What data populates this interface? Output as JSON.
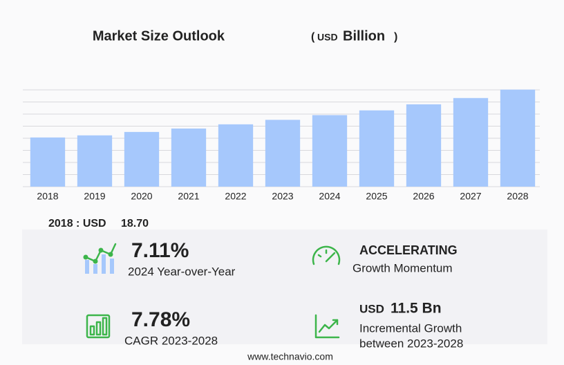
{
  "chart_data": {
    "type": "bar",
    "title": "Market Size Outlook",
    "unit_prefix": "USD",
    "unit": "Billion",
    "categories": [
      "2018",
      "2019",
      "2020",
      "2021",
      "2022",
      "2023",
      "2024",
      "2025",
      "2026",
      "2027",
      "2028"
    ],
    "values": [
      18.7,
      19.5,
      20.8,
      22.1,
      23.7,
      25.4,
      27.2,
      29.0,
      31.3,
      33.7,
      36.9
    ],
    "color": "#a6c8fc",
    "ylim": [
      0,
      36.8
    ],
    "yticks": [
      0,
      4.6,
      9.2,
      13.8,
      18.4,
      23,
      27.6,
      32.2,
      36.8
    ],
    "grid": true
  },
  "highlight": {
    "label": "2018 : USD",
    "value": "18.70"
  },
  "stats": {
    "yoy": {
      "value": "7.11%",
      "label": "2024 Year-over-Year"
    },
    "momentum": {
      "value": "ACCELERATING",
      "label": "Growth Momentum"
    },
    "cagr": {
      "value": "7.78%",
      "label": "CAGR 2023-2028"
    },
    "incremental": {
      "prefix": "USD",
      "value": "11.5 Bn",
      "label": "Incremental Growth",
      "label2": "between 2023-2028"
    }
  },
  "footer": "www.technavio.com"
}
